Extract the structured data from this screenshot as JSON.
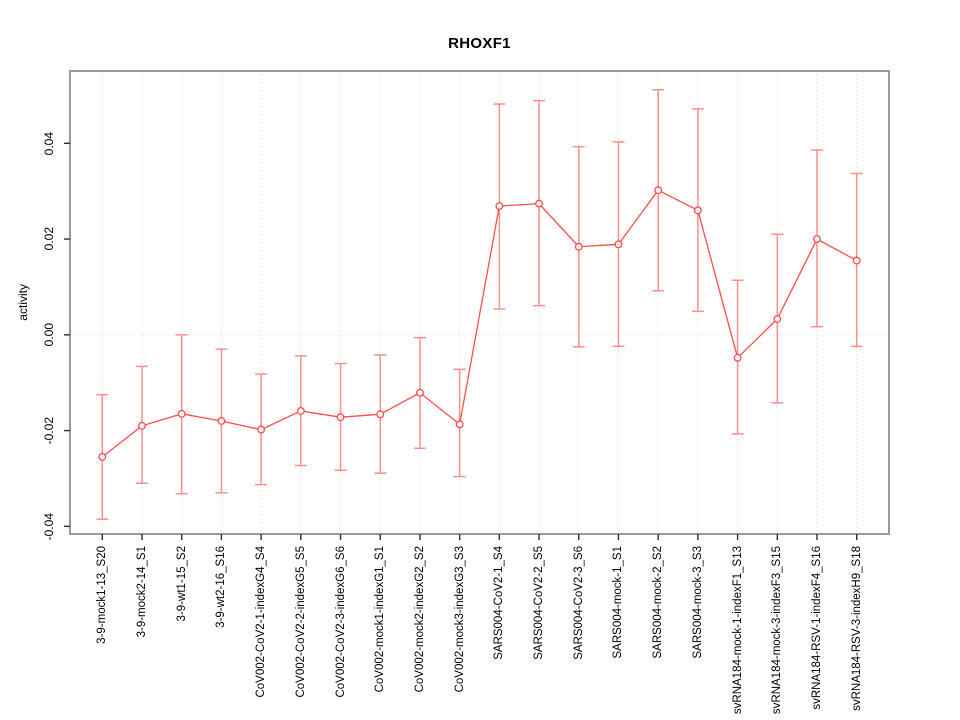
{
  "chart_data": {
    "type": "line",
    "title": "RHOXF1",
    "ylabel": "activity",
    "legend": "none",
    "grid": "vertical dotted gridline at each category; horizontal dotted line at y=0",
    "categories": [
      "3-9-mock1-13_S20",
      "3-9-mock2-14_S1",
      "3-9-wt1-15_S2",
      "3-9-wt2-16_S16",
      "CoV002-CoV2-1-indexG4_S4",
      "CoV002-CoV2-2-indexG5_S5",
      "CoV002-CoV2-3-indexG6_S6",
      "CoV002-mock1-indexG1_S1",
      "CoV002-mock2-indexG2_S2",
      "CoV002-mock3-indexG3_S3",
      "SARS004-CoV2-1_S4",
      "SARS004-CoV2-2_S5",
      "SARS004-CoV2-3_S6",
      "SARS004-mock-1_S1",
      "SARS004-mock-2_S2",
      "SARS004-mock-3_S3",
      "svRNA184-mock-1-indexF1_S13",
      "svRNA184-mock-3-indexF3_S15",
      "svRNA184-RSV-1-indexF4_S16",
      "svRNA184-RSV-3-indexH9_S18"
    ],
    "series": [
      {
        "name": "activity",
        "values": [
          -0.0255,
          -0.019,
          -0.0165,
          -0.018,
          -0.0198,
          -0.0159,
          -0.0172,
          -0.0166,
          -0.0121,
          -0.0187,
          0.0269,
          0.0274,
          0.0184,
          0.0189,
          0.0302,
          0.026,
          -0.0048,
          0.0033,
          0.02,
          0.0155
        ],
        "ci_low": [
          -0.0385,
          -0.031,
          -0.0332,
          -0.033,
          -0.0313,
          -0.0273,
          -0.0283,
          -0.0289,
          -0.0237,
          -0.0296,
          0.0054,
          0.0061,
          -0.0025,
          -0.0024,
          0.0092,
          0.0049,
          -0.0207,
          -0.0142,
          0.0017,
          -0.0024
        ],
        "ci_high": [
          -0.0125,
          -0.0066,
          0.0,
          -0.003,
          -0.0082,
          -0.0044,
          -0.006,
          -0.0042,
          -0.0006,
          -0.0072,
          0.0482,
          0.0489,
          0.0393,
          0.0403,
          0.0512,
          0.0472,
          0.0114,
          0.021,
          0.0386,
          0.0337
        ]
      }
    ],
    "yticks": [
      -0.04,
      -0.02,
      0.0,
      0.02,
      0.04
    ],
    "ytick_labels": [
      "-0.04",
      "-0.02",
      "0.00",
      "0.02",
      "0.04"
    ],
    "ylim": [
      -0.0416,
      0.0551
    ],
    "colors": {
      "point_line": "#ff4d4d",
      "error_bar": "#ff8f8f",
      "grid": "#d9d9d9",
      "box_border": "#999999",
      "tick": "#303030",
      "text": "#000000",
      "background": "#ffffff"
    }
  }
}
